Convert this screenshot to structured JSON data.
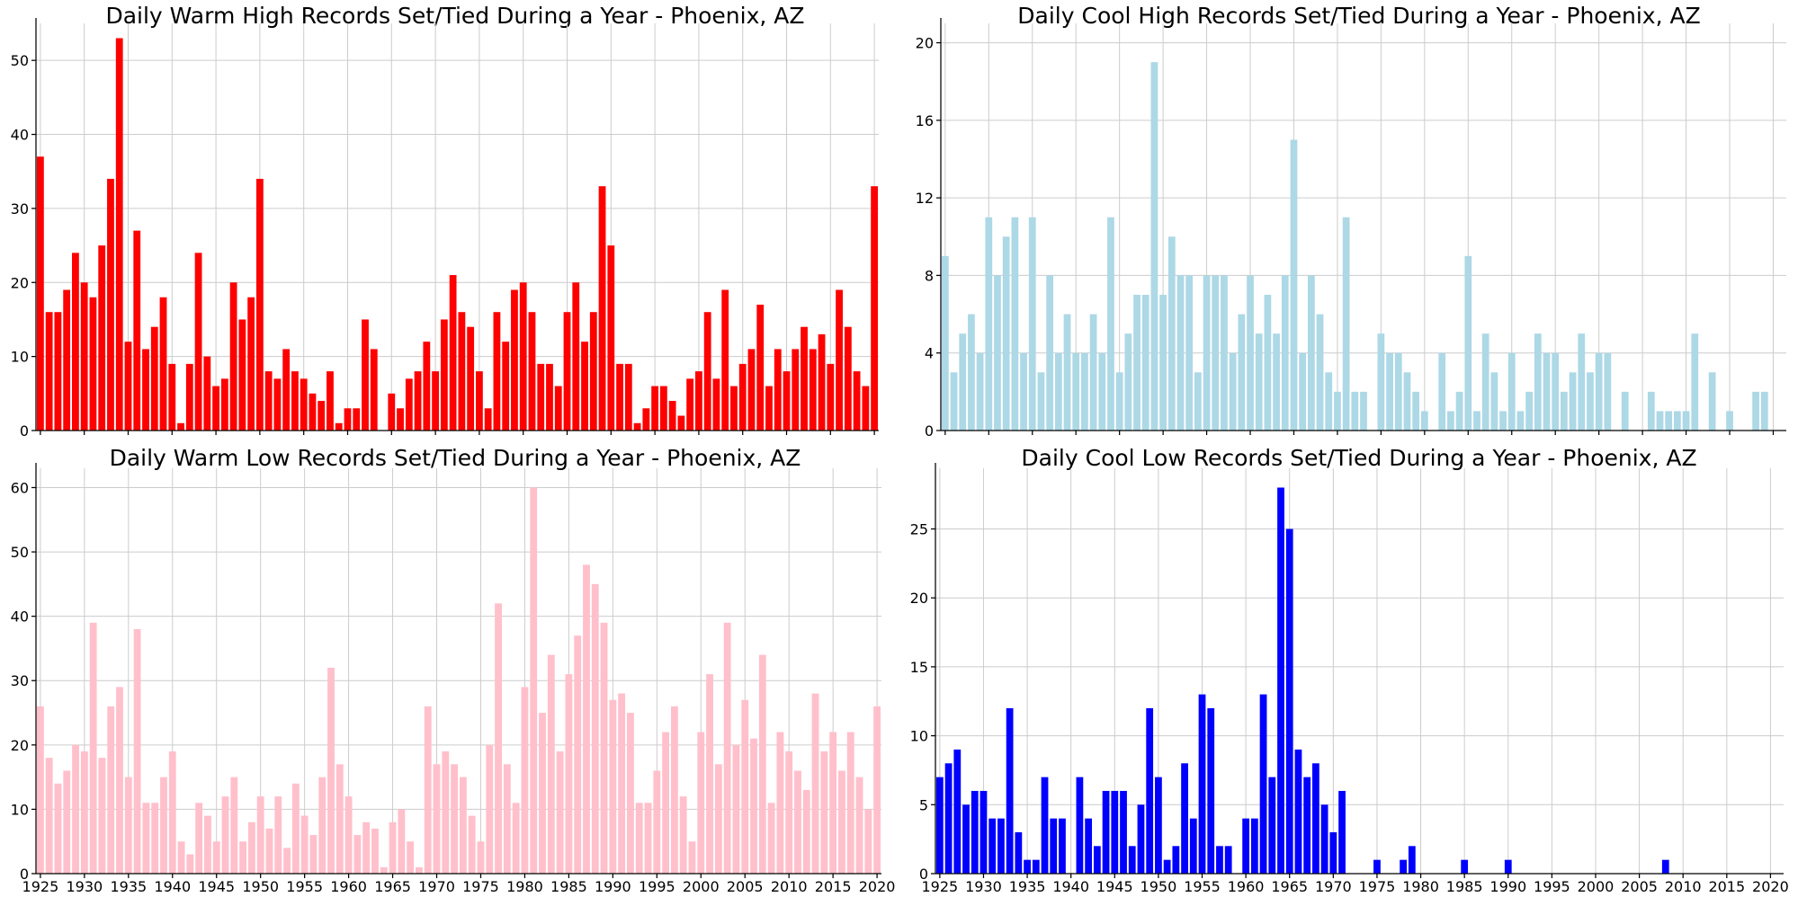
{
  "chart_data": [
    {
      "type": "bar",
      "title": "Daily Warm High Records Set/Tied During a Year - Phoenix, AZ",
      "color": "#ff0000",
      "xlabel": "",
      "ylabel": "",
      "xlim": [
        1924.5,
        2020.5
      ],
      "ylim": [
        0,
        55
      ],
      "yticks": [
        0,
        10,
        20,
        30,
        40,
        50
      ],
      "xticks": [],
      "grid": true,
      "x": [
        1925,
        1926,
        1927,
        1928,
        1929,
        1930,
        1931,
        1932,
        1933,
        1934,
        1935,
        1936,
        1937,
        1938,
        1939,
        1940,
        1941,
        1942,
        1943,
        1944,
        1945,
        1946,
        1947,
        1948,
        1949,
        1950,
        1951,
        1952,
        1953,
        1954,
        1955,
        1956,
        1957,
        1958,
        1959,
        1960,
        1961,
        1962,
        1963,
        1964,
        1965,
        1966,
        1967,
        1968,
        1969,
        1970,
        1971,
        1972,
        1973,
        1974,
        1975,
        1976,
        1977,
        1978,
        1979,
        1980,
        1981,
        1982,
        1983,
        1984,
        1985,
        1986,
        1987,
        1988,
        1989,
        1990,
        1991,
        1992,
        1993,
        1994,
        1995,
        1996,
        1997,
        1998,
        1999,
        2000,
        2001,
        2002,
        2003,
        2004,
        2005,
        2006,
        2007,
        2008,
        2009,
        2010,
        2011,
        2012,
        2013,
        2014,
        2015,
        2016,
        2017,
        2018,
        2019,
        2020
      ],
      "values": [
        37,
        16,
        16,
        19,
        24,
        20,
        18,
        25,
        34,
        53,
        12,
        27,
        11,
        14,
        18,
        9,
        1,
        9,
        24,
        10,
        6,
        7,
        20,
        15,
        18,
        34,
        8,
        7,
        11,
        8,
        7,
        5,
        4,
        8,
        1,
        3,
        3,
        15,
        11,
        0,
        5,
        3,
        7,
        8,
        12,
        8,
        15,
        21,
        16,
        14,
        8,
        3,
        16,
        12,
        19,
        20,
        16,
        9,
        9,
        6,
        16,
        20,
        12,
        16,
        33,
        25,
        9,
        9,
        1,
        3,
        6,
        6,
        4,
        2,
        7,
        8,
        16,
        7,
        19,
        6,
        9,
        11,
        17,
        6,
        11,
        8,
        11,
        14,
        11,
        13,
        9,
        19,
        14,
        8,
        6,
        33
      ]
    },
    {
      "type": "bar",
      "title": "Daily Cool High Records Set/Tied During a Year - Phoenix, AZ",
      "color": "#add8e6",
      "xlabel": "",
      "ylabel": "",
      "xlim": [
        1924.5,
        2021.5
      ],
      "ylim": [
        0,
        21
      ],
      "yticks": [
        0,
        4,
        8,
        12,
        16,
        20
      ],
      "xticks": [],
      "grid": true,
      "x": [
        1925,
        1926,
        1927,
        1928,
        1929,
        1930,
        1931,
        1932,
        1933,
        1934,
        1935,
        1936,
        1937,
        1938,
        1939,
        1940,
        1941,
        1942,
        1943,
        1944,
        1945,
        1946,
        1947,
        1948,
        1949,
        1950,
        1951,
        1952,
        1953,
        1954,
        1955,
        1956,
        1957,
        1958,
        1959,
        1960,
        1961,
        1962,
        1963,
        1964,
        1965,
        1966,
        1967,
        1968,
        1969,
        1970,
        1971,
        1972,
        1973,
        1974,
        1975,
        1976,
        1977,
        1978,
        1979,
        1980,
        1981,
        1982,
        1983,
        1984,
        1985,
        1986,
        1987,
        1988,
        1989,
        1990,
        1991,
        1992,
        1993,
        1994,
        1995,
        1996,
        1997,
        1998,
        1999,
        2000,
        2001,
        2002,
        2003,
        2004,
        2005,
        2006,
        2007,
        2008,
        2009,
        2010,
        2011,
        2012,
        2013,
        2014,
        2015,
        2016,
        2017,
        2018,
        2019,
        2020,
        2021
      ],
      "values": [
        9,
        3,
        5,
        6,
        4,
        11,
        8,
        10,
        11,
        4,
        11,
        3,
        8,
        4,
        6,
        4,
        4,
        6,
        4,
        11,
        3,
        5,
        7,
        7,
        19,
        7,
        10,
        8,
        8,
        3,
        8,
        8,
        8,
        4,
        6,
        8,
        5,
        7,
        5,
        8,
        15,
        4,
        8,
        6,
        3,
        2,
        11,
        2,
        2,
        0,
        5,
        4,
        4,
        3,
        2,
        1,
        0,
        4,
        1,
        2,
        9,
        1,
        5,
        3,
        1,
        4,
        1,
        2,
        5,
        4,
        4,
        2,
        3,
        5,
        3,
        4,
        4,
        0,
        2,
        0,
        0,
        2,
        1,
        1,
        1,
        1,
        5,
        0,
        3,
        0,
        1,
        0,
        0,
        2,
        2,
        0,
        0
      ]
    },
    {
      "type": "bar",
      "title": "Daily Warm Low Records Set/Tied During a Year - Phoenix, AZ",
      "color": "#ffc0cb",
      "xlabel": "",
      "ylabel": "",
      "xlim": [
        1924.5,
        2020.5
      ],
      "ylim": [
        0,
        63
      ],
      "yticks": [
        0,
        10,
        20,
        30,
        40,
        50,
        60
      ],
      "xticks": [
        1925,
        1930,
        1935,
        1940,
        1945,
        1950,
        1955,
        1960,
        1965,
        1970,
        1975,
        1980,
        1985,
        1990,
        1995,
        2000,
        2005,
        2010,
        2015,
        2020
      ],
      "xtick_labels": [
        "1925",
        "1930",
        "1935",
        "1940",
        "1945",
        "1950",
        "1955",
        "1960",
        "1965",
        "1970",
        "1975",
        "1980",
        "1985",
        "1990",
        "1995",
        "2000",
        "2005",
        "2010",
        "2015",
        "2020"
      ],
      "grid": true,
      "x": [
        1925,
        1926,
        1927,
        1928,
        1929,
        1930,
        1931,
        1932,
        1933,
        1934,
        1935,
        1936,
        1937,
        1938,
        1939,
        1940,
        1941,
        1942,
        1943,
        1944,
        1945,
        1946,
        1947,
        1948,
        1949,
        1950,
        1951,
        1952,
        1953,
        1954,
        1955,
        1956,
        1957,
        1958,
        1959,
        1960,
        1961,
        1962,
        1963,
        1964,
        1965,
        1966,
        1967,
        1968,
        1969,
        1970,
        1971,
        1972,
        1973,
        1974,
        1975,
        1976,
        1977,
        1978,
        1979,
        1980,
        1981,
        1982,
        1983,
        1984,
        1985,
        1986,
        1987,
        1988,
        1989,
        1990,
        1991,
        1992,
        1993,
        1994,
        1995,
        1996,
        1997,
        1998,
        1999,
        2000,
        2001,
        2002,
        2003,
        2004,
        2005,
        2006,
        2007,
        2008,
        2009,
        2010,
        2011,
        2012,
        2013,
        2014,
        2015,
        2016,
        2017,
        2018,
        2019,
        2020
      ],
      "values": [
        26,
        18,
        14,
        16,
        20,
        19,
        39,
        18,
        26,
        29,
        15,
        38,
        11,
        11,
        15,
        19,
        5,
        3,
        11,
        9,
        5,
        12,
        15,
        5,
        8,
        12,
        7,
        12,
        4,
        14,
        9,
        6,
        15,
        32,
        17,
        12,
        6,
        8,
        7,
        1,
        8,
        10,
        5,
        1,
        26,
        17,
        19,
        17,
        15,
        9,
        5,
        20,
        42,
        17,
        11,
        29,
        60,
        25,
        34,
        19,
        31,
        37,
        48,
        45,
        39,
        27,
        28,
        25,
        11,
        11,
        16,
        22,
        26,
        12,
        5,
        22,
        31,
        17,
        39,
        20,
        27,
        21,
        34,
        11,
        22,
        19,
        16,
        13,
        28,
        19,
        22,
        16,
        22,
        15,
        10,
        26
      ]
    },
    {
      "type": "bar",
      "title": "Daily Cool Low Records Set/Tied During a Year - Phoenix, AZ",
      "color": "#0000ff",
      "xlabel": "",
      "ylabel": "",
      "xlim": [
        1924.5,
        2021.5
      ],
      "ylim": [
        0,
        29.4
      ],
      "yticks": [
        0,
        5,
        10,
        15,
        20,
        25
      ],
      "xticks": [
        1925,
        1930,
        1935,
        1940,
        1945,
        1950,
        1955,
        1960,
        1965,
        1970,
        1975,
        1980,
        1985,
        1990,
        1995,
        2000,
        2005,
        2010,
        2015,
        2020
      ],
      "xtick_labels": [
        "1925",
        "1930",
        "1935",
        "1940",
        "1945",
        "1950",
        "1955",
        "1960",
        "1965",
        "1970",
        "1975",
        "1980",
        "1985",
        "1990",
        "1995",
        "2000",
        "2005",
        "2010",
        "2015",
        "2020"
      ],
      "grid": true,
      "x": [
        1925,
        1926,
        1927,
        1928,
        1929,
        1930,
        1931,
        1932,
        1933,
        1934,
        1935,
        1936,
        1937,
        1938,
        1939,
        1940,
        1941,
        1942,
        1943,
        1944,
        1945,
        1946,
        1947,
        1948,
        1949,
        1950,
        1951,
        1952,
        1953,
        1954,
        1955,
        1956,
        1957,
        1958,
        1959,
        1960,
        1961,
        1962,
        1963,
        1964,
        1965,
        1966,
        1967,
        1968,
        1969,
        1970,
        1971,
        1972,
        1973,
        1974,
        1975,
        1976,
        1977,
        1978,
        1979,
        1980,
        1981,
        1982,
        1983,
        1984,
        1985,
        1986,
        1987,
        1988,
        1989,
        1990,
        1991,
        1992,
        1993,
        1994,
        1995,
        1996,
        1997,
        1998,
        1999,
        2000,
        2001,
        2002,
        2003,
        2004,
        2005,
        2006,
        2007,
        2008,
        2009,
        2010,
        2011,
        2012,
        2013,
        2014,
        2015,
        2016,
        2017,
        2018,
        2019,
        2020,
        2021
      ],
      "values": [
        7,
        8,
        9,
        5,
        6,
        6,
        4,
        4,
        12,
        3,
        1,
        1,
        7,
        4,
        4,
        0,
        7,
        4,
        2,
        6,
        6,
        6,
        2,
        5,
        12,
        7,
        1,
        2,
        8,
        4,
        13,
        12,
        2,
        2,
        0,
        4,
        4,
        13,
        7,
        28,
        25,
        9,
        7,
        8,
        5,
        3,
        6,
        0,
        0,
        0,
        1,
        0,
        0,
        1,
        2,
        0,
        0,
        0,
        0,
        0,
        1,
        0,
        0,
        0,
        0,
        1,
        0,
        0,
        0,
        0,
        0,
        0,
        0,
        0,
        0,
        0,
        0,
        0,
        0,
        0,
        0,
        0,
        0,
        1,
        0,
        0,
        0,
        0,
        0,
        0,
        0,
        0,
        0,
        0,
        0,
        0,
        0
      ]
    }
  ]
}
